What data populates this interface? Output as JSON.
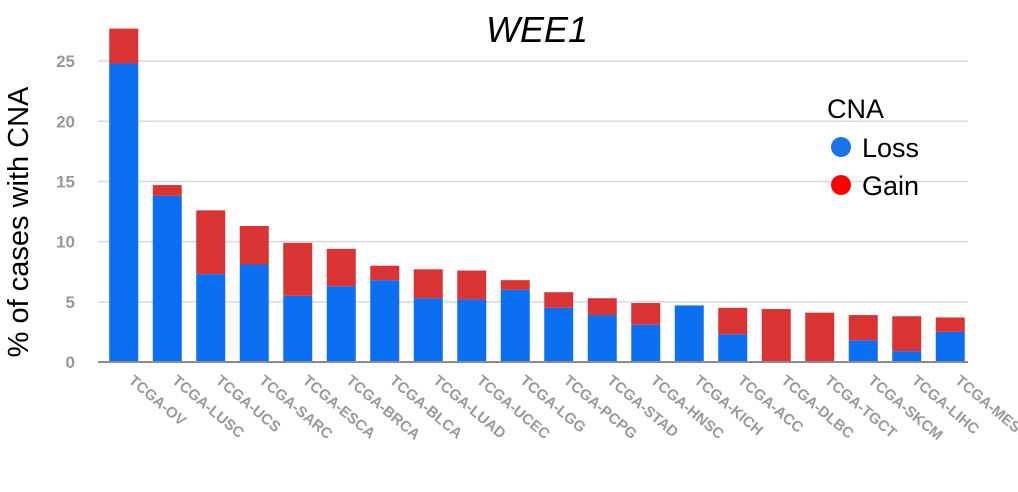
{
  "chart_data": {
    "type": "bar",
    "stacked": true,
    "title": "WEE1",
    "xlabel": "",
    "ylabel": "% of cases with CNA",
    "ylim": [
      0,
      28
    ],
    "yticks": [
      0,
      5,
      10,
      15,
      20,
      25
    ],
    "grid": true,
    "legend": {
      "title": "CNA",
      "position": "top-right"
    },
    "categories": [
      "TCGA-OV",
      "TCGA-LUSC",
      "TCGA-UCS",
      "TCGA-SARC",
      "TCGA-ESCA",
      "TCGA-BRCA",
      "TCGA-BLCA",
      "TCGA-LUAD",
      "TCGA-UCEC",
      "TCGA-LGG",
      "TCGA-PCPG",
      "TCGA-STAD",
      "TCGA-HNSC",
      "TCGA-KICH",
      "TCGA-ACC",
      "TCGA-DLBC",
      "TCGA-TGCT",
      "TCGA-SKCM",
      "TCGA-LIHC",
      "TCGA-MESO"
    ],
    "series": [
      {
        "name": "Loss",
        "color": "#0a6ff0",
        "values": [
          24.8,
          13.8,
          7.3,
          8.1,
          5.5,
          6.3,
          6.8,
          5.3,
          5.2,
          6.0,
          4.5,
          3.9,
          3.1,
          4.7,
          2.3,
          0,
          0,
          1.8,
          0.9,
          2.5
        ]
      },
      {
        "name": "Gain",
        "color": "#d93333",
        "values": [
          2.9,
          0.9,
          5.3,
          3.2,
          4.4,
          3.1,
          1.2,
          2.4,
          2.4,
          0.8,
          1.3,
          1.4,
          1.8,
          0,
          2.2,
          4.4,
          4.1,
          2.1,
          2.9,
          1.2
        ]
      }
    ],
    "legend_marker_colors": {
      "Loss": "#1a73e8",
      "Gain": "#ff0000"
    }
  }
}
